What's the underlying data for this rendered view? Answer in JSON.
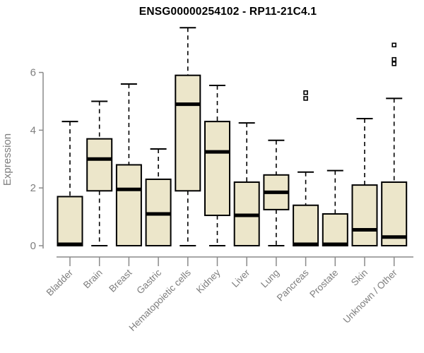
{
  "figure": {
    "colors": {
      "background": "#FFFFFF",
      "box_fill": "#ECE6CA",
      "box_border": "#000000",
      "median": "#000000",
      "whisker": "#000000",
      "outlier_stroke": "#000000",
      "outlier_fill": "#FFFFFF",
      "axis": "#8A8A8A",
      "label_text": "#7E7E7E",
      "title_text": "#000000"
    }
  },
  "chart_data": {
    "type": "boxplot",
    "title": "ENSG00000254102 - RP11-21C4.1",
    "ylabel": "Expression",
    "xlabel": "",
    "ylim": [
      0,
      7.6
    ],
    "yticks": [
      0,
      2,
      4,
      6
    ],
    "grid": false,
    "legend_position": "none",
    "x_label_rotation_deg": 45,
    "categories": [
      "Bladder",
      "Brain",
      "Breast",
      "Gastric",
      "Hematopoietic cells",
      "Kidney",
      "Liver",
      "Lung",
      "Pancreas",
      "Prostate",
      "Skin",
      "Unknown / Other"
    ],
    "boxes": [
      {
        "category": "Bladder",
        "min": 0,
        "q1": 0,
        "median": 0.05,
        "q3": 1.7,
        "max": 4.3,
        "outliers": []
      },
      {
        "category": "Brain",
        "min": 0,
        "q1": 1.9,
        "median": 3.0,
        "q3": 3.7,
        "max": 5.0,
        "outliers": []
      },
      {
        "category": "Breast",
        "min": 0,
        "q1": 0,
        "median": 1.95,
        "q3": 2.8,
        "max": 5.6,
        "outliers": []
      },
      {
        "category": "Gastric",
        "min": 0,
        "q1": 0,
        "median": 1.1,
        "q3": 2.3,
        "max": 3.35,
        "outliers": []
      },
      {
        "category": "Hematopoietic cells",
        "min": 0,
        "q1": 1.9,
        "median": 4.9,
        "q3": 5.9,
        "max": 7.55,
        "outliers": []
      },
      {
        "category": "Kidney",
        "min": 0,
        "q1": 1.05,
        "median": 3.25,
        "q3": 4.3,
        "max": 5.55,
        "outliers": []
      },
      {
        "category": "Liver",
        "min": 0,
        "q1": 0,
        "median": 1.05,
        "q3": 2.2,
        "max": 4.25,
        "outliers": []
      },
      {
        "category": "Lung",
        "min": 0,
        "q1": 1.25,
        "median": 1.85,
        "q3": 2.45,
        "max": 3.65,
        "outliers": []
      },
      {
        "category": "Pancreas",
        "min": 0,
        "q1": 0,
        "median": 0.05,
        "q3": 1.4,
        "max": 2.55,
        "outliers": [
          5.1,
          5.3
        ]
      },
      {
        "category": "Prostate",
        "min": 0,
        "q1": 0,
        "median": 0.05,
        "q3": 1.1,
        "max": 2.6,
        "outliers": []
      },
      {
        "category": "Skin",
        "min": 0,
        "q1": 0,
        "median": 0.55,
        "q3": 2.1,
        "max": 4.4,
        "outliers": []
      },
      {
        "category": "Unknown / Other",
        "min": 0,
        "q1": 0,
        "median": 0.3,
        "q3": 2.2,
        "max": 5.1,
        "outliers": [
          6.3,
          6.45,
          6.95
        ]
      }
    ]
  }
}
